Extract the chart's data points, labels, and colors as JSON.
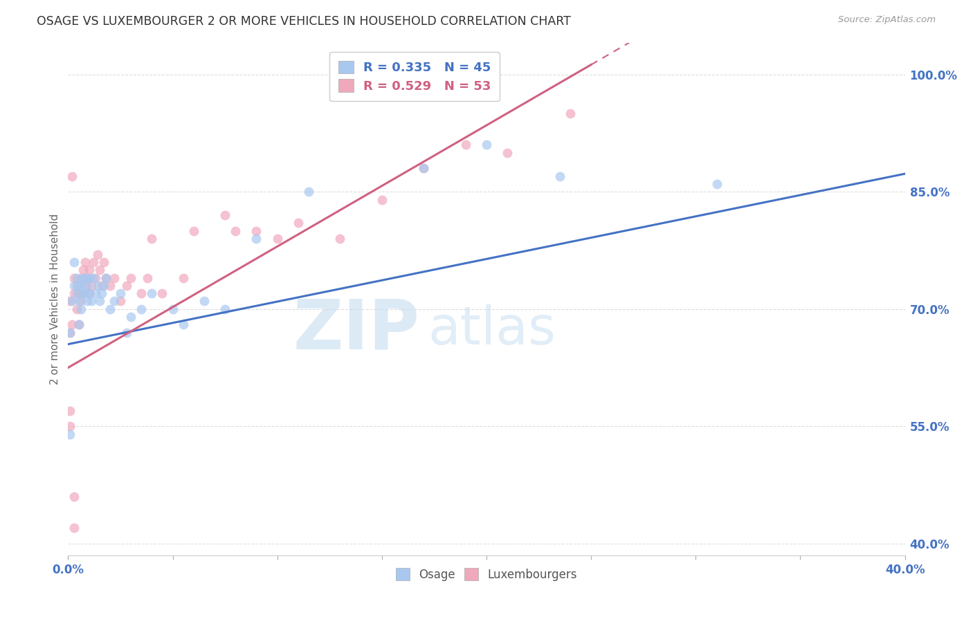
{
  "title": "OSAGE VS LUXEMBOURGER 2 OR MORE VEHICLES IN HOUSEHOLD CORRELATION CHART",
  "source": "Source: ZipAtlas.com",
  "ylabel": "2 or more Vehicles in Household",
  "ylabel_right_ticks": [
    "40.0%",
    "55.0%",
    "70.0%",
    "85.0%",
    "100.0%"
  ],
  "ylabel_right_values": [
    0.4,
    0.55,
    0.7,
    0.85,
    1.0
  ],
  "xmin": 0.0,
  "xmax": 0.4,
  "ymin": 0.385,
  "ymax": 1.04,
  "watermark_zip": "ZIP",
  "watermark_atlas": "atlas",
  "legend_blue_R": "0.335",
  "legend_blue_N": "45",
  "legend_pink_R": "0.529",
  "legend_pink_N": "53",
  "osage_color": "#a8c8f0",
  "luxembourger_color": "#f0a8bc",
  "osage_line_color": "#4472c4",
  "luxembourger_line_color": "#d06080",
  "osage_x": [
    0.001,
    0.002,
    0.003,
    0.003,
    0.004,
    0.004,
    0.005,
    0.005,
    0.005,
    0.006,
    0.006,
    0.007,
    0.007,
    0.008,
    0.008,
    0.009,
    0.009,
    0.01,
    0.01,
    0.011,
    0.012,
    0.013,
    0.014,
    0.015,
    0.016,
    0.017,
    0.018,
    0.02,
    0.022,
    0.025,
    0.028,
    0.03,
    0.035,
    0.04,
    0.05,
    0.055,
    0.065,
    0.075,
    0.09,
    0.115,
    0.17,
    0.2,
    0.235,
    0.31,
    0.001
  ],
  "osage_y": [
    0.67,
    0.71,
    0.73,
    0.76,
    0.72,
    0.74,
    0.68,
    0.71,
    0.73,
    0.7,
    0.73,
    0.72,
    0.74,
    0.72,
    0.74,
    0.71,
    0.73,
    0.72,
    0.74,
    0.71,
    0.74,
    0.72,
    0.73,
    0.71,
    0.72,
    0.73,
    0.74,
    0.7,
    0.71,
    0.72,
    0.67,
    0.69,
    0.7,
    0.72,
    0.7,
    0.68,
    0.71,
    0.7,
    0.79,
    0.85,
    0.88,
    0.91,
    0.87,
    0.86,
    0.54
  ],
  "luxembourger_x": [
    0.001,
    0.001,
    0.002,
    0.003,
    0.003,
    0.004,
    0.004,
    0.005,
    0.005,
    0.006,
    0.006,
    0.007,
    0.007,
    0.008,
    0.008,
    0.009,
    0.01,
    0.01,
    0.011,
    0.012,
    0.013,
    0.014,
    0.015,
    0.016,
    0.017,
    0.018,
    0.02,
    0.022,
    0.025,
    0.028,
    0.03,
    0.035,
    0.038,
    0.04,
    0.045,
    0.055,
    0.06,
    0.075,
    0.08,
    0.09,
    0.1,
    0.11,
    0.13,
    0.15,
    0.17,
    0.19,
    0.21,
    0.24,
    0.001,
    0.001,
    0.002,
    0.003,
    0.003
  ],
  "luxembourger_y": [
    0.67,
    0.71,
    0.68,
    0.72,
    0.74,
    0.7,
    0.73,
    0.68,
    0.72,
    0.71,
    0.74,
    0.72,
    0.75,
    0.73,
    0.76,
    0.74,
    0.72,
    0.75,
    0.73,
    0.76,
    0.74,
    0.77,
    0.75,
    0.73,
    0.76,
    0.74,
    0.73,
    0.74,
    0.71,
    0.73,
    0.74,
    0.72,
    0.74,
    0.79,
    0.72,
    0.74,
    0.8,
    0.82,
    0.8,
    0.8,
    0.79,
    0.81,
    0.79,
    0.84,
    0.88,
    0.91,
    0.9,
    0.95,
    0.55,
    0.57,
    0.87,
    0.46,
    0.42
  ],
  "background_color": "#ffffff",
  "grid_color": "#dddddd",
  "title_color": "#333333",
  "axis_label_color": "#4472c4",
  "marker_size": 100,
  "osage_line_intercept": 0.655,
  "osage_line_slope": 0.545,
  "luxembourger_line_intercept": 0.625,
  "luxembourger_line_slope": 1.55
}
